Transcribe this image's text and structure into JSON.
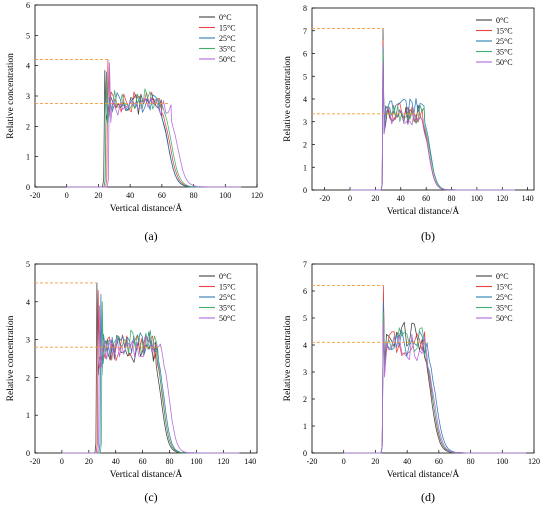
{
  "figure": {
    "legend_labels": [
      "0°C",
      "15°C",
      "25°C",
      "35°C",
      "50°C"
    ],
    "series_colors": [
      "#404040",
      "#e8433f",
      "#2e79b5",
      "#3fb06b",
      "#b566e0"
    ],
    "reference_line_color": "#f29a38"
  },
  "chart_data": [
    {
      "id": "a",
      "panel_label": "(a)",
      "type": "line",
      "xlabel": "Vertical distance/Å",
      "ylabel": "Relative concentration",
      "xlim": [
        -20,
        120
      ],
      "ylim": [
        0,
        6
      ],
      "xticks": [
        -20,
        0,
        20,
        40,
        60,
        80,
        100,
        120
      ],
      "yticks": [
        0,
        1,
        2,
        3,
        4,
        5,
        6
      ],
      "legend_position": "top-right",
      "grid": false,
      "reference_lines": [
        4.2,
        2.75
      ],
      "x_range": [
        0,
        110
      ],
      "rise": [
        24,
        26,
        25,
        25,
        27
      ],
      "peak": [
        3.85,
        4.2,
        3.8,
        3.6,
        4.1
      ],
      "plateau": [
        2.75,
        2.8,
        2.75,
        2.9,
        2.6
      ],
      "drop": [
        64,
        65,
        64,
        66,
        70
      ],
      "series": [
        {
          "name": "0°C"
        },
        {
          "name": "15°C"
        },
        {
          "name": "25°C"
        },
        {
          "name": "35°C"
        },
        {
          "name": "50°C"
        }
      ]
    },
    {
      "id": "b",
      "panel_label": "(b)",
      "type": "line",
      "xlabel": "Vertical distance/Å",
      "ylabel": "Relative concentration",
      "xlim": [
        -30,
        145
      ],
      "ylim": [
        0,
        8
      ],
      "xticks": [
        -20,
        0,
        20,
        40,
        60,
        80,
        100,
        120,
        140
      ],
      "yticks": [
        0,
        1,
        2,
        3,
        4,
        5,
        6,
        7,
        8
      ],
      "legend_position": "top-right",
      "grid": false,
      "reference_lines": [
        7.1,
        3.35
      ],
      "x_range": [
        0,
        130
      ],
      "rise": [
        26,
        26,
        26,
        26,
        26
      ],
      "peak": [
        7.1,
        6.6,
        6.3,
        6.0,
        5.6
      ],
      "plateau": [
        3.3,
        3.4,
        3.6,
        3.3,
        3.2
      ],
      "drop": [
        62,
        62,
        63,
        63,
        62
      ],
      "series": [
        {
          "name": "0°C"
        },
        {
          "name": "15°C"
        },
        {
          "name": "25°C"
        },
        {
          "name": "35°C"
        },
        {
          "name": "50°C"
        }
      ]
    },
    {
      "id": "c",
      "panel_label": "(c)",
      "type": "line",
      "xlabel": "Vertical distance/Å",
      "ylabel": "Relative concentration",
      "xlim": [
        -20,
        145
      ],
      "ylim": [
        0,
        5
      ],
      "xticks": [
        -20,
        0,
        20,
        40,
        60,
        80,
        100,
        120,
        140
      ],
      "yticks": [
        0,
        1,
        2,
        3,
        4,
        5
      ],
      "legend_position": "top-right",
      "grid": false,
      "reference_lines": [
        4.5,
        2.8
      ],
      "x_range": [
        0,
        132
      ],
      "rise": [
        26,
        27,
        29,
        30,
        28
      ],
      "peak": [
        4.5,
        4.3,
        4.2,
        4.0,
        3.9
      ],
      "plateau": [
        2.75,
        2.8,
        2.85,
        2.9,
        2.75
      ],
      "drop": [
        74,
        75,
        76,
        75,
        80
      ],
      "series": [
        {
          "name": "0°C"
        },
        {
          "name": "15°C"
        },
        {
          "name": "25°C"
        },
        {
          "name": "35°C"
        },
        {
          "name": "50°C"
        }
      ]
    },
    {
      "id": "d",
      "panel_label": "(d)",
      "type": "line",
      "xlabel": "Vertical distance/Å",
      "ylabel": "Relative concentration",
      "xlim": [
        -20,
        120
      ],
      "ylim": [
        0,
        7
      ],
      "xticks": [
        -20,
        0,
        20,
        40,
        60,
        80,
        100,
        120
      ],
      "yticks": [
        0,
        1,
        2,
        3,
        4,
        5,
        6,
        7
      ],
      "legend_position": "top-right",
      "grid": false,
      "reference_lines": [
        6.2,
        4.1
      ],
      "x_range": [
        0,
        115
      ],
      "rise": [
        25,
        25,
        25,
        25,
        25
      ],
      "peak": [
        5.9,
        6.2,
        5.6,
        5.2,
        4.8
      ],
      "plateau": [
        4.3,
        4.0,
        4.1,
        4.2,
        3.9
      ],
      "drop": [
        55,
        56,
        58,
        56,
        57
      ],
      "series": [
        {
          "name": "0°C"
        },
        {
          "name": "15°C"
        },
        {
          "name": "25°C"
        },
        {
          "name": "35°C"
        },
        {
          "name": "50°C"
        }
      ]
    }
  ]
}
